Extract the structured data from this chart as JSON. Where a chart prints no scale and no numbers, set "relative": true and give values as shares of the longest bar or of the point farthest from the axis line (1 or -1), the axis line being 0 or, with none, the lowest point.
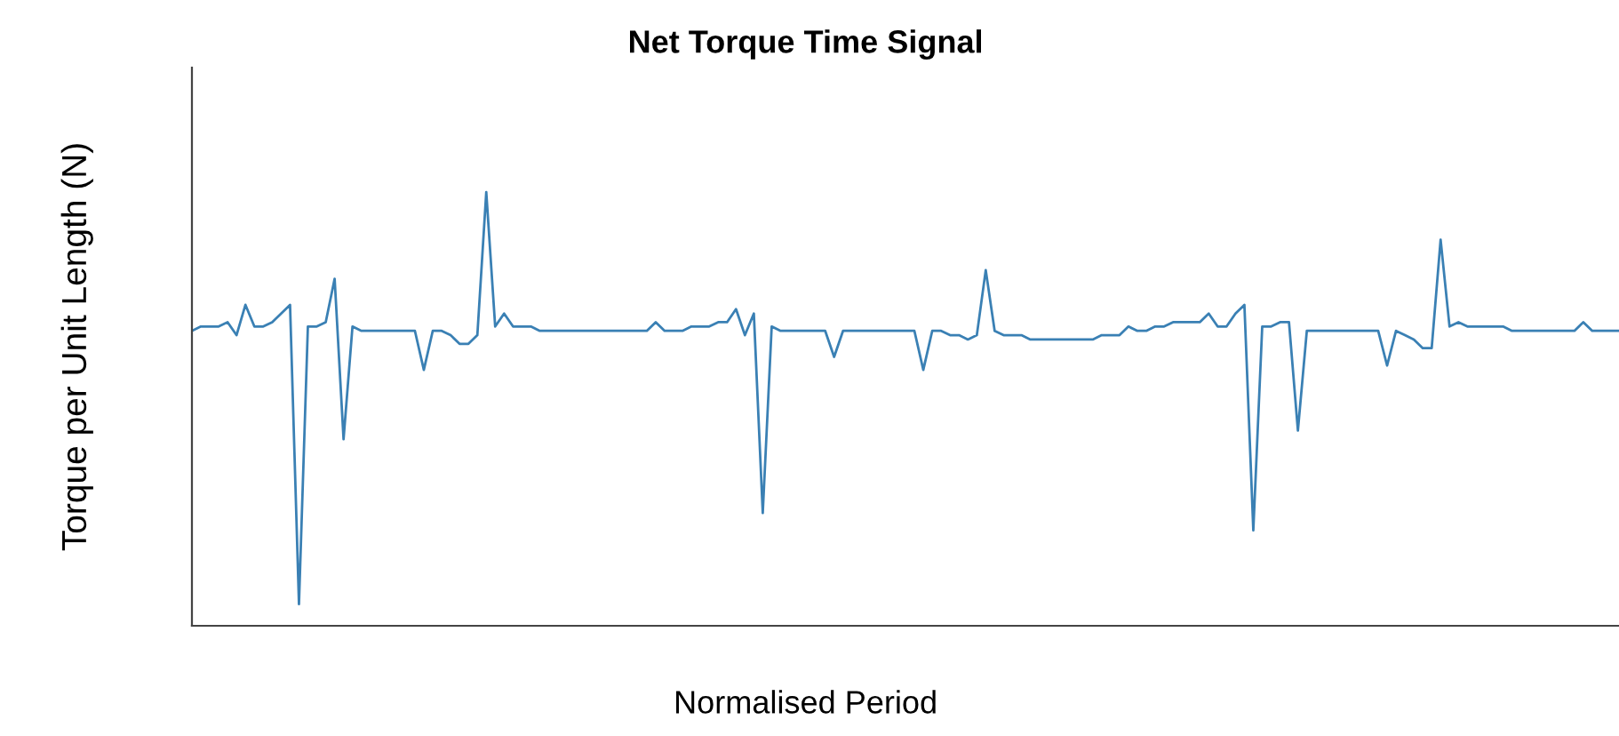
{
  "chart_data": {
    "type": "line",
    "title": "Net Torque Time Signal",
    "xlabel": "Normalised Period",
    "ylabel": "Torque per Unit Length (N)",
    "relative": true,
    "grid": false,
    "marker": "none",
    "line_style": "solid",
    "categories": [
      null,
      null,
      null,
      null,
      null,
      null,
      null,
      null,
      null,
      null,
      null,
      null,
      null,
      null,
      null,
      null,
      null,
      null,
      null,
      null,
      null,
      null,
      null,
      null,
      null,
      null,
      null,
      null,
      null,
      null,
      null,
      null,
      null,
      null,
      null,
      null,
      null,
      null,
      null,
      null,
      null,
      null,
      null,
      null,
      null,
      null,
      null,
      null,
      null,
      null,
      null,
      null,
      null,
      null,
      null,
      null,
      null,
      null,
      null,
      null,
      null,
      null,
      null,
      null,
      null,
      null,
      null,
      null,
      null,
      null,
      null,
      null,
      null,
      null,
      null,
      null,
      null,
      null,
      null,
      null,
      null,
      null,
      null,
      null,
      null,
      null,
      null,
      null,
      null,
      null,
      null,
      null,
      null,
      null,
      null,
      null,
      null,
      null,
      null,
      null,
      null,
      null,
      null,
      null,
      null,
      null,
      null,
      null,
      null,
      null,
      null,
      null,
      null,
      null,
      null,
      null,
      null,
      null,
      null,
      null,
      null,
      null,
      null,
      null,
      null,
      null,
      null,
      null,
      null,
      null,
      null,
      null,
      null,
      null,
      null,
      null,
      null,
      null,
      null,
      null,
      null,
      null,
      null,
      null,
      null,
      null,
      null,
      null,
      null,
      null,
      null,
      null,
      null,
      null,
      null,
      null,
      null,
      null,
      null,
      null,
      null
    ],
    "series": [
      {
        "color": "#3a80b4",
        "values": [
          0.68,
          0.69,
          0.69,
          0.69,
          0.7,
          0.67,
          0.74,
          0.69,
          0.69,
          0.7,
          0.72,
          0.74,
          0.05,
          0.69,
          0.69,
          0.7,
          0.8,
          0.43,
          0.69,
          0.68,
          0.68,
          0.68,
          0.68,
          0.68,
          0.68,
          0.68,
          0.59,
          0.68,
          0.68,
          0.67,
          0.65,
          0.65,
          0.67,
          1,
          0.69,
          0.72,
          0.69,
          0.69,
          0.69,
          0.68,
          0.68,
          0.68,
          0.68,
          0.68,
          0.68,
          0.68,
          0.68,
          0.68,
          0.68,
          0.68,
          0.68,
          0.68,
          0.7,
          0.68,
          0.68,
          0.68,
          0.69,
          0.69,
          0.69,
          0.7,
          0.7,
          0.73,
          0.67,
          0.72,
          0.26,
          0.69,
          0.68,
          0.68,
          0.68,
          0.68,
          0.68,
          0.68,
          0.62,
          0.68,
          0.68,
          0.68,
          0.68,
          0.68,
          0.68,
          0.68,
          0.68,
          0.68,
          0.59,
          0.68,
          0.68,
          0.67,
          0.67,
          0.66,
          0.67,
          0.82,
          0.68,
          0.67,
          0.67,
          0.67,
          0.66,
          0.66,
          0.66,
          0.66,
          0.66,
          0.66,
          0.66,
          0.66,
          0.67,
          0.67,
          0.67,
          0.69,
          0.68,
          0.68,
          0.69,
          0.69,
          0.7,
          0.7,
          0.7,
          0.7,
          0.72,
          0.69,
          0.69,
          0.72,
          0.74,
          0.22,
          0.69,
          0.69,
          0.7,
          0.7,
          0.45,
          0.68,
          0.68,
          0.68,
          0.68,
          0.68,
          0.68,
          0.68,
          0.68,
          0.68,
          0.6,
          0.68,
          0.67,
          0.66,
          0.64,
          0.64,
          0.89,
          0.69,
          0.7,
          0.69,
          0.69,
          0.69,
          0.69,
          0.69,
          0.68,
          0.68,
          0.68,
          0.68,
          0.68,
          0.68,
          0.68,
          0.68,
          0.7,
          0.68,
          0.68,
          0.68,
          0.68
        ]
      }
    ]
  }
}
